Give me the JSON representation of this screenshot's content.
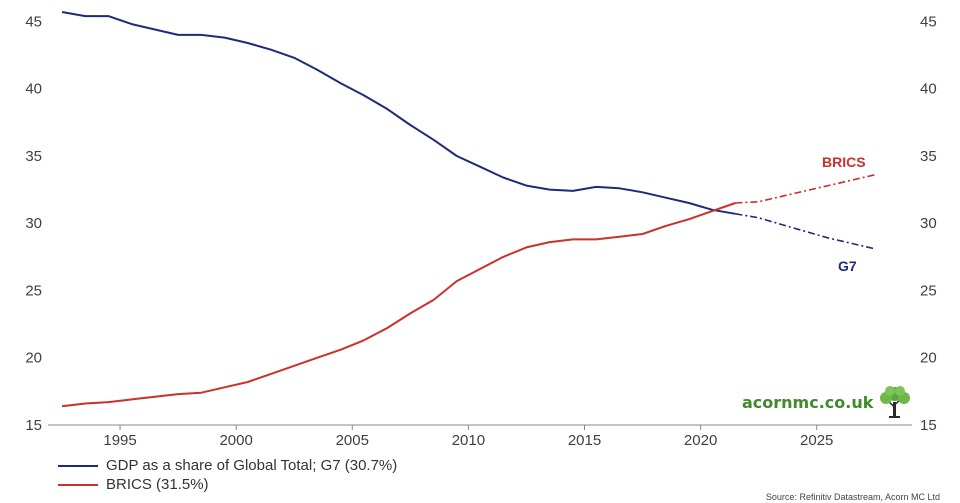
{
  "chart_data": {
    "type": "line",
    "ylim": [
      15,
      46
    ],
    "xlim": [
      1992.5,
      2028.5
    ],
    "yticks": [
      15,
      20,
      25,
      30,
      35,
      40,
      45
    ],
    "xticks": [
      1995,
      2000,
      2005,
      2010,
      2015,
      2020,
      2025
    ],
    "grid": false,
    "legend_position": "bottom-left",
    "series": [
      {
        "name": "GDP as a share of Global Total; G7 (30.7%)",
        "end_label": "G7",
        "color": "#1f2a7a",
        "x": [
          1992.5,
          1993.5,
          1994.5,
          1995.5,
          1996.5,
          1997.5,
          1998.5,
          1999.5,
          2000.5,
          2001.5,
          2002.5,
          2003.5,
          2004.5,
          2005.5,
          2006.5,
          2007.5,
          2008.5,
          2009.5,
          2010.5,
          2011.5,
          2012.5,
          2013.5,
          2014.5,
          2015.5,
          2016.5,
          2017.5,
          2018.5,
          2019.5,
          2020.5,
          2021.5
        ],
        "y": [
          45.7,
          45.4,
          45.4,
          44.8,
          44.4,
          44.0,
          44.0,
          43.8,
          43.4,
          42.9,
          42.3,
          41.4,
          40.4,
          39.5,
          38.5,
          37.3,
          36.2,
          35.0,
          34.2,
          33.4,
          32.8,
          32.5,
          32.4,
          32.7,
          32.6,
          32.3,
          31.9,
          31.5,
          31.0,
          30.7
        ],
        "projection": {
          "x": [
            2021.5,
            2022.5,
            2023.5,
            2024.5,
            2025.5,
            2026.5,
            2027.5
          ],
          "y": [
            30.7,
            30.4,
            29.9,
            29.4,
            28.9,
            28.5,
            28.1
          ]
        }
      },
      {
        "name": "BRICS (31.5%)",
        "end_label": "BRICS",
        "color": "#c8322b",
        "x": [
          1992.5,
          1993.5,
          1994.5,
          1995.5,
          1996.5,
          1997.5,
          1998.5,
          1999.5,
          2000.5,
          2001.5,
          2002.5,
          2003.5,
          2004.5,
          2005.5,
          2006.5,
          2007.5,
          2008.5,
          2009.5,
          2010.5,
          2011.5,
          2012.5,
          2013.5,
          2014.5,
          2015.5,
          2016.5,
          2017.5,
          2018.5,
          2019.5,
          2020.5,
          2021.5
        ],
        "y": [
          16.4,
          16.6,
          16.7,
          16.9,
          17.1,
          17.3,
          17.4,
          17.8,
          18.2,
          18.8,
          19.4,
          20.0,
          20.6,
          21.3,
          22.2,
          23.3,
          24.3,
          25.7,
          26.6,
          27.5,
          28.2,
          28.6,
          28.8,
          28.8,
          29.0,
          29.2,
          29.8,
          30.3,
          30.9,
          31.5
        ],
        "projection": {
          "x": [
            2021.5,
            2022.5,
            2023.5,
            2024.5,
            2025.5,
            2026.5,
            2027.5
          ],
          "y": [
            31.5,
            31.6,
            32.0,
            32.4,
            32.8,
            33.2,
            33.6
          ]
        }
      }
    ]
  },
  "brand": {
    "text": "acornmc.co.uk",
    "icon": "tree-icon",
    "color": "#3f8a2a"
  },
  "source": "Source: Refinitiv Datastream, Acorn MC Ltd"
}
